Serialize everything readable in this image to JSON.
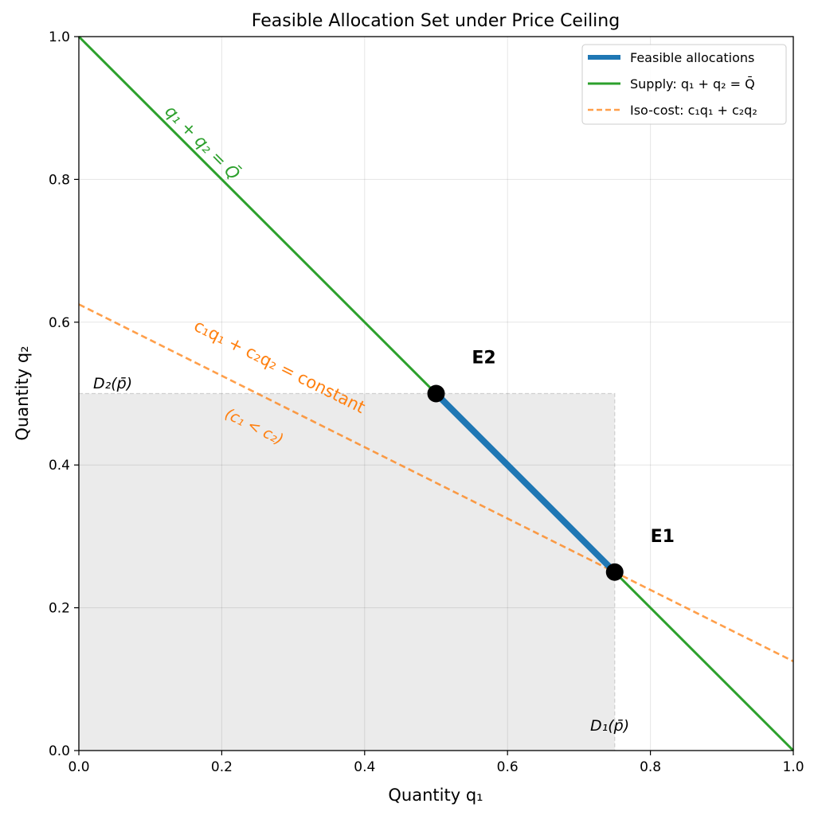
{
  "chart_data": {
    "type": "line",
    "title": "Feasible Allocation Set under Price Ceiling",
    "xlabel": "Quantity q₁",
    "ylabel": "Quantity q₂",
    "xlim": [
      0,
      1
    ],
    "ylim": [
      0,
      1
    ],
    "grid": true,
    "x_ticks": [
      0.0,
      0.2,
      0.4,
      0.6,
      0.8,
      1.0
    ],
    "y_ticks": [
      0.0,
      0.2,
      0.4,
      0.6,
      0.8,
      1.0
    ],
    "x_tick_labels": [
      "0.0",
      "0.2",
      "0.4",
      "0.6",
      "0.8",
      "1.0"
    ],
    "y_tick_labels": [
      "0.0",
      "0.2",
      "0.4",
      "0.6",
      "0.8",
      "1.0"
    ],
    "legend_position": "top-right",
    "series": [
      {
        "name": "Feasible allocations",
        "legend_label": "Feasible allocations",
        "style": "solid-thick",
        "color": "#1f77b4",
        "x": [
          0.5,
          0.75
        ],
        "y": [
          0.5,
          0.25
        ]
      },
      {
        "name": "Supply",
        "legend_label": "Supply: q₁ + q₂ = Q̄",
        "style": "solid",
        "color": "#2ca02c",
        "x": [
          0,
          1
        ],
        "y": [
          1,
          0
        ]
      },
      {
        "name": "Iso-cost",
        "legend_label": "Iso-cost: c₁q₁ + c₂q₂",
        "style": "dashed",
        "color": "#ff7f0e",
        "x": [
          0,
          1
        ],
        "y": [
          0.625,
          0.125
        ]
      }
    ],
    "shaded_region": {
      "name": "Demand box",
      "x": [
        0,
        0.75
      ],
      "y": [
        0,
        0.5
      ],
      "color": "#d8d8d8"
    },
    "points": [
      {
        "label": "E2",
        "x": 0.5,
        "y": 0.5
      },
      {
        "label": "E1",
        "x": 0.75,
        "y": 0.25
      }
    ],
    "annotations": [
      {
        "name": "supply-line-label",
        "text": "q₁ + q₂ = Q̄",
        "color": "#2ca02c"
      },
      {
        "name": "iso-cost-line-label",
        "text": "c₁q₁ + c₂q₂ = constant",
        "color": "#ff7f0e"
      },
      {
        "name": "cost-condition-label",
        "text": "(c₁ < c₂)",
        "color": "#ff7f0e"
      },
      {
        "name": "d2-label",
        "text": "D₂(p̄)",
        "color": "#000000"
      },
      {
        "name": "d1-label",
        "text": "D₁(p̄)",
        "color": "#000000"
      }
    ]
  }
}
